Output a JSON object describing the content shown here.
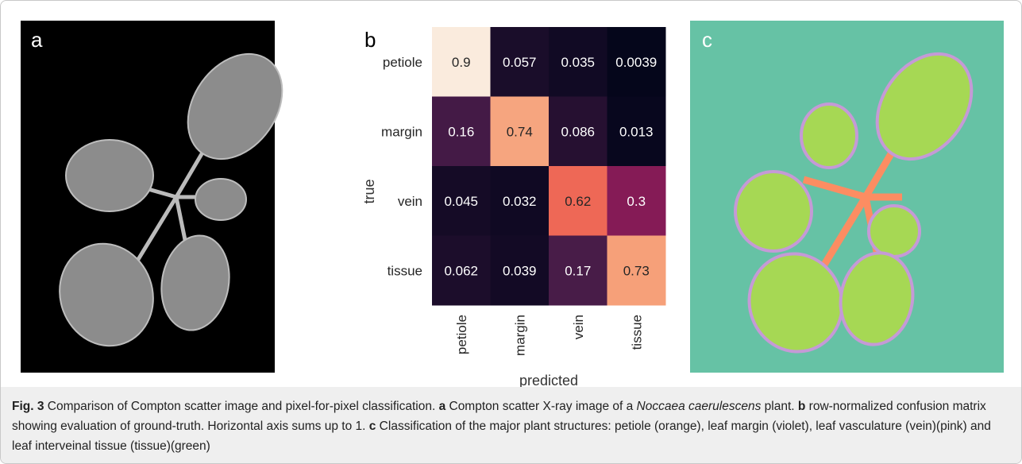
{
  "panels": {
    "a": {
      "label": "a"
    },
    "c": {
      "label": "c"
    }
  },
  "chart_data": {
    "type": "heatmap",
    "label": "b",
    "rows": [
      "petiole",
      "margin",
      "vein",
      "tissue"
    ],
    "columns": [
      "petiole",
      "margin",
      "vein",
      "tissue"
    ],
    "values": [
      [
        0.9,
        0.057,
        0.035,
        0.0039
      ],
      [
        0.16,
        0.74,
        0.086,
        0.013
      ],
      [
        0.045,
        0.032,
        0.62,
        0.3
      ],
      [
        0.062,
        0.039,
        0.17,
        0.73
      ]
    ],
    "xlabel": "predicted",
    "ylabel": "true",
    "clim": [
      0,
      0.9
    ],
    "colormap": "rocket"
  },
  "caption": [
    {
      "text": "Fig. 3",
      "style": "bold"
    },
    {
      "text": "  Comparison of Compton scatter image and pixel-for-pixel classification. ",
      "style": "normal"
    },
    {
      "text": "a",
      "style": "bold"
    },
    {
      "text": " Compton scatter X-ray image of a ",
      "style": "normal"
    },
    {
      "text": "Noccaea caerulescens",
      "style": "italic"
    },
    {
      "text": " plant. ",
      "style": "normal"
    },
    {
      "text": "b",
      "style": "bold"
    },
    {
      "text": " row-normalized confusion matrix showing evaluation of ground-truth. Horizontal axis sums up to 1. ",
      "style": "normal"
    },
    {
      "text": "c",
      "style": "bold"
    },
    {
      "text": " Classification of the major plant structures: petiole (orange), leaf margin (violet), leaf vasculature (vein)(pink) and leaf interveinal tissue (tissue)(green)",
      "style": "normal"
    }
  ]
}
